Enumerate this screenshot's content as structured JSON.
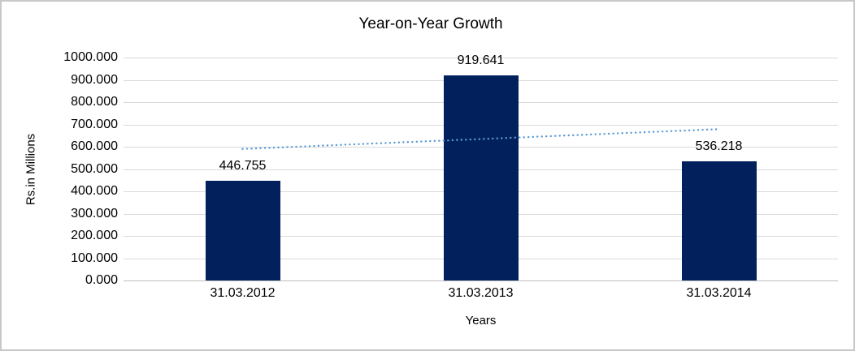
{
  "chart_data": {
    "type": "bar",
    "title": "Year-on-Year Growth",
    "xlabel": "Years",
    "ylabel": "Rs.in Millions",
    "categories": [
      "31.03.2012",
      "31.03.2013",
      "31.03.2014"
    ],
    "values": [
      446.755,
      919.641,
      536.218
    ],
    "value_labels": [
      "446.755",
      "919.641",
      "536.218"
    ],
    "ylim": [
      0,
      1000
    ],
    "y_ticks": [
      {
        "label": "1000.000",
        "value": 1000
      },
      {
        "label": "900.000",
        "value": 900
      },
      {
        "label": "800.000",
        "value": 800
      },
      {
        "label": "700.000",
        "value": 700
      },
      {
        "label": "600.000",
        "value": 600
      },
      {
        "label": "500.000",
        "value": 500
      },
      {
        "label": "400.000",
        "value": 400
      },
      {
        "label": "300.000",
        "value": 300
      },
      {
        "label": "200.000",
        "value": 200
      },
      {
        "label": "100.000",
        "value": 100
      },
      {
        "label": "0.000",
        "value": 0
      }
    ],
    "grid": true,
    "legend": false,
    "trendline": {
      "type": "linear",
      "style": "dotted",
      "start_value": 590,
      "end_value": 679
    },
    "colors": {
      "bar": "#02215C",
      "trendline": "#5B9BD5",
      "gridline": "#D9D9D9",
      "zero_axis_line": "#BFBFBF",
      "text": "#000000",
      "frame_border": "#C8C8C8",
      "background": "#FFFFFF"
    }
  }
}
